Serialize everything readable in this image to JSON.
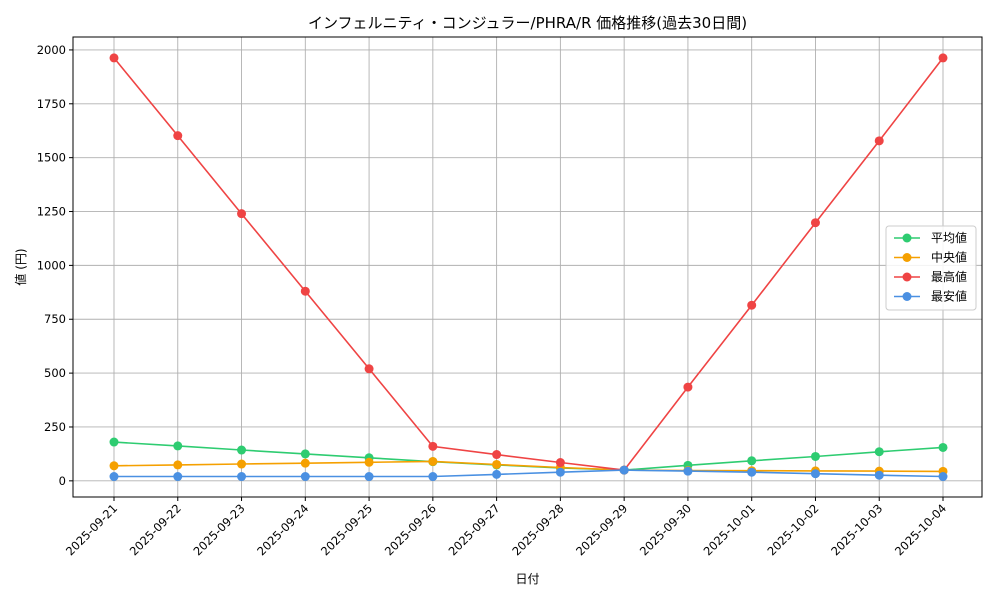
{
  "chart_data": {
    "type": "line",
    "title": "インフェルニティ・コンジュラー/PHRA/R 価格推移(過去30日間)",
    "xlabel": "日付",
    "ylabel": "値 (円)",
    "ylim": [
      -75,
      2060
    ],
    "yticks": [
      0,
      250,
      500,
      750,
      1000,
      1250,
      1500,
      1750,
      2000
    ],
    "grid": true,
    "legend_position": "right",
    "categories": [
      "2025-09-21",
      "2025-09-22",
      "2025-09-23",
      "2025-09-24",
      "2025-09-25",
      "2025-09-26",
      "2025-09-27",
      "2025-09-28",
      "2025-09-29",
      "2025-09-30",
      "2025-10-01",
      "2025-10-02",
      "2025-10-03",
      "2025-10-04"
    ],
    "series": [
      {
        "name": "平均値",
        "color": "#2ecc71",
        "values": [
          180,
          162,
          143,
          125,
          107,
          89,
          74,
          60,
          50,
          72,
          93,
          113,
          135,
          155
        ]
      },
      {
        "name": "中央値",
        "color": "#f5a000",
        "values": [
          70,
          74,
          78,
          82,
          86,
          90,
          76,
          62,
          50,
          48,
          47,
          46,
          45,
          44
        ]
      },
      {
        "name": "最高値",
        "color": "#ef4444",
        "values": [
          1963,
          1602,
          1240,
          880,
          520,
          160,
          122,
          85,
          50,
          435,
          815,
          1198,
          1578,
          1963
        ]
      },
      {
        "name": "最安値",
        "color": "#4a90e2",
        "values": [
          20,
          20,
          20,
          20,
          20,
          20,
          30,
          40,
          50,
          45,
          40,
          33,
          26,
          20
        ]
      }
    ]
  }
}
